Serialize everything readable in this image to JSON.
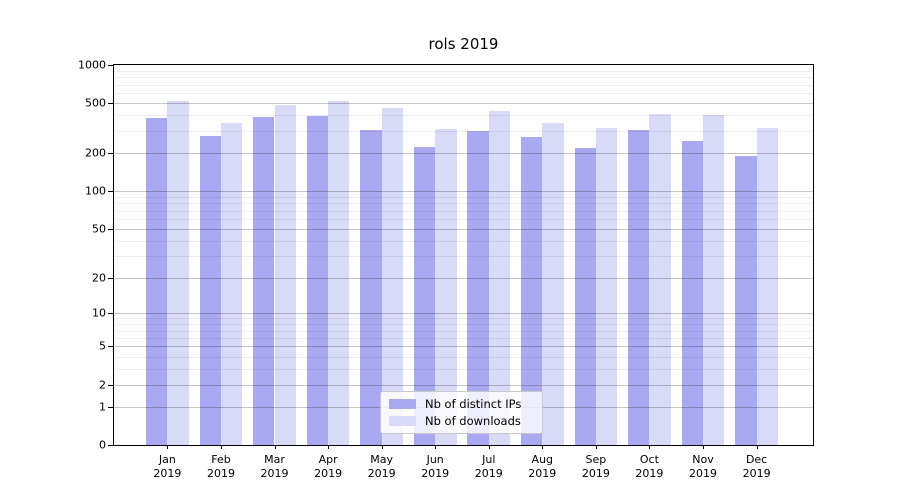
{
  "title": "rols 2019",
  "colors": {
    "distinct_ips_bar": "#a9a9f1",
    "downloads_bar": "#d9d9f8",
    "axis": "#000000",
    "grid_major": "#c6c6c6",
    "grid_minor": "#ececec",
    "legend_border": "#c9c9c9",
    "legend_background": "#ffffff"
  },
  "legend": {
    "items": [
      {
        "label": "Nb of distinct IPs",
        "color": "#a9a9f1"
      },
      {
        "label": "Nb of downloads",
        "color": "#d9d9f8"
      }
    ]
  },
  "chart_data": {
    "type": "bar",
    "title": "rols 2019",
    "categories": [
      "Jan",
      "Feb",
      "Mar",
      "Apr",
      "May",
      "Jun",
      "Jul",
      "Aug",
      "Sep",
      "Oct",
      "Nov",
      "Dec"
    ],
    "category_year": "2019",
    "series": [
      {
        "name": "Nb of distinct IPs",
        "color": "#a9a9f1",
        "values": [
          380,
          275,
          390,
          395,
          305,
          225,
          300,
          270,
          220,
          305,
          250,
          190
        ]
      },
      {
        "name": "Nb of downloads",
        "color": "#d9d9f8",
        "values": [
          520,
          350,
          485,
          515,
          455,
          310,
          430,
          350,
          320,
          410,
          400,
          315
        ]
      }
    ],
    "xlabel": "",
    "ylabel": "",
    "yscale": "log10(1+y)",
    "ylim": [
      0,
      1000
    ],
    "y_major_ticks": [
      0,
      1,
      2,
      5,
      10,
      20,
      50,
      100,
      200,
      500,
      1000
    ],
    "y_minor_ticks": [
      3,
      4,
      6,
      7,
      8,
      9,
      30,
      40,
      60,
      70,
      80,
      90,
      300,
      400,
      600,
      700,
      800,
      900
    ],
    "grid": true,
    "grid_on_top_of_bars": true,
    "legend_position": "lower-center"
  }
}
